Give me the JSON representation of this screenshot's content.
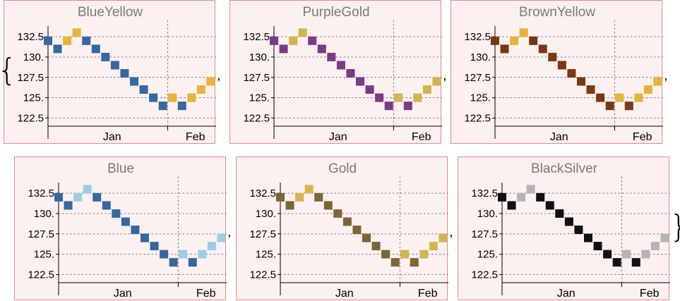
{
  "separator": ",",
  "brace_open": "{",
  "brace_close": "}",
  "chart_data": [
    {
      "type": "scatter",
      "title": "BlueYellow",
      "colors": {
        "dark": "#35689e",
        "light": "#e6b43a"
      }
    },
    {
      "type": "scatter",
      "title": "PurpleGold",
      "colors": {
        "dark": "#7b3a85",
        "light": "#d2b551"
      }
    },
    {
      "type": "scatter",
      "title": "BrownYellow",
      "colors": {
        "dark": "#7c3814",
        "light": "#e6b43a"
      }
    },
    {
      "type": "scatter",
      "title": "Blue",
      "colors": {
        "dark": "#35689e",
        "light": "#9ccde6"
      }
    },
    {
      "type": "scatter",
      "title": "Gold",
      "colors": {
        "dark": "#7d6536",
        "light": "#d2b551"
      }
    },
    {
      "type": "scatter",
      "title": "BlackSilver",
      "colors": {
        "dark": "#111111",
        "light": "#b4b4b4"
      }
    }
  ],
  "shared": {
    "y_ticks": [
      122.5,
      125,
      127.5,
      130,
      132.5
    ],
    "y_tick_labels": [
      "122.5",
      "125.",
      "127.5",
      "130.",
      "132.5"
    ],
    "x_labels": [
      "Jan",
      "Feb"
    ],
    "y_range": [
      121.5,
      134.5
    ],
    "grid": "dotted",
    "points_y": [
      132,
      131,
      132,
      133,
      132,
      131,
      130,
      129,
      128,
      127,
      126,
      125,
      124,
      125,
      124,
      125,
      126,
      127,
      128
    ],
    "points_shade": [
      "dark",
      "dark",
      "light",
      "light",
      "dark",
      "dark",
      "dark",
      "dark",
      "dark",
      "dark",
      "dark",
      "dark",
      "dark",
      "light",
      "dark",
      "light",
      "light",
      "light",
      "light"
    ],
    "month_boundary_index": 12.5
  }
}
